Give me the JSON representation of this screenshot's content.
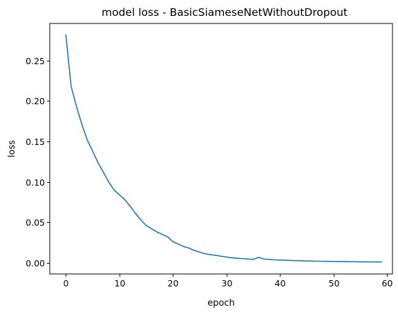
{
  "chart_data": {
    "type": "line",
    "title": "model loss - BasicSiameseNetWithoutDropout",
    "xlabel": "epoch",
    "ylabel": "loss",
    "xlim": [
      -3,
      61
    ],
    "ylim": [
      -0.014,
      0.296
    ],
    "xticks": [
      0,
      10,
      20,
      30,
      40,
      50,
      60
    ],
    "xtick_labels": [
      "0",
      "10",
      "20",
      "30",
      "40",
      "50",
      "60"
    ],
    "yticks": [
      0.0,
      0.05,
      0.1,
      0.15,
      0.2,
      0.25
    ],
    "ytick_labels": [
      "0.00",
      "0.05",
      "0.10",
      "0.15",
      "0.20",
      "0.25"
    ],
    "grid": false,
    "series": [
      {
        "name": "loss",
        "color": "#1f77b4",
        "x": [
          0,
          1,
          2,
          3,
          4,
          5,
          6,
          7,
          8,
          9,
          10,
          11,
          12,
          13,
          14,
          15,
          16,
          17,
          18,
          19,
          20,
          21,
          22,
          23,
          24,
          25,
          26,
          27,
          28,
          29,
          30,
          31,
          32,
          33,
          34,
          35,
          36,
          37,
          38,
          39,
          40,
          41,
          42,
          43,
          44,
          45,
          46,
          47,
          48,
          49,
          50,
          51,
          52,
          53,
          54,
          55,
          56,
          57,
          58,
          59
        ],
        "values": [
          0.282,
          0.218,
          0.193,
          0.171,
          0.152,
          0.138,
          0.124,
          0.112,
          0.1,
          0.09,
          0.084,
          0.078,
          0.07,
          0.061,
          0.053,
          0.046,
          0.042,
          0.038,
          0.035,
          0.032,
          0.026,
          0.023,
          0.02,
          0.018,
          0.015,
          0.013,
          0.011,
          0.01,
          0.009,
          0.008,
          0.007,
          0.006,
          0.0055,
          0.005,
          0.0045,
          0.004,
          0.0065,
          0.0045,
          0.004,
          0.0035,
          0.0032,
          0.003,
          0.0027,
          0.0025,
          0.0023,
          0.0021,
          0.002,
          0.0018,
          0.0017,
          0.0016,
          0.0015,
          0.0014,
          0.0013,
          0.0012,
          0.0011,
          0.001,
          0.001,
          0.0009,
          0.0009,
          0.0008
        ]
      }
    ]
  }
}
